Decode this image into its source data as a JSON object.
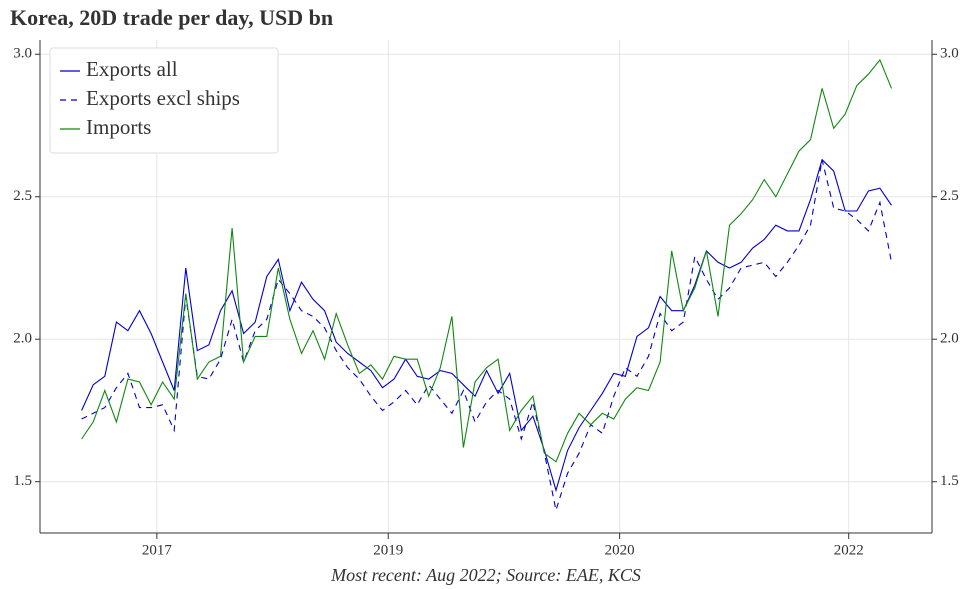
{
  "chart_data": {
    "type": "line",
    "title": "Korea, 20D trade per day, USD bn",
    "footnote": "Most recent: Aug 2022; Source: EAE, KCS",
    "x": [
      0,
      1,
      2,
      3,
      4,
      5,
      6,
      7,
      8,
      9,
      10,
      11,
      12,
      13,
      14,
      15,
      16,
      17,
      18,
      19,
      20,
      21,
      22,
      23,
      24,
      25,
      26,
      27,
      28,
      29,
      30,
      31,
      32,
      33,
      34,
      35,
      36,
      37,
      38,
      39,
      40,
      41,
      42,
      43,
      44,
      45,
      46,
      47,
      48,
      49,
      50,
      51,
      52,
      53,
      54,
      55,
      56,
      57,
      58,
      59,
      60,
      61,
      62,
      63,
      64,
      65,
      66,
      67,
      68,
      69,
      70
    ],
    "xlim": [
      -3.6,
      73.5
    ],
    "xticks": [
      {
        "value": 6.5,
        "label": "2017"
      },
      {
        "value": 26.5,
        "label": "2019"
      },
      {
        "value": 46.5,
        "label": "2020"
      },
      {
        "value": 66.3,
        "label": "2022"
      }
    ],
    "ylim": [
      1.32,
      3.05
    ],
    "yticks": [
      1.5,
      {
        "value": 2.0,
        "label": "2.0"
      },
      2.5,
      {
        "value": 3.0,
        "label": "3.0"
      }
    ],
    "grid": true,
    "legend": "upper left",
    "series": [
      {
        "name": "Exports all",
        "color": "#0000cc",
        "dash": "solid",
        "values": [
          1.75,
          1.84,
          1.87,
          2.06,
          2.03,
          2.1,
          2.02,
          1.92,
          1.82,
          2.25,
          1.96,
          1.98,
          2.1,
          2.17,
          2.02,
          2.06,
          2.22,
          2.28,
          2.1,
          2.2,
          2.14,
          2.1,
          1.99,
          1.95,
          1.92,
          1.89,
          1.83,
          1.86,
          1.93,
          1.87,
          1.86,
          1.89,
          1.88,
          1.84,
          1.8,
          1.89,
          1.81,
          1.88,
          1.68,
          1.73,
          1.61,
          1.47,
          1.61,
          1.69,
          1.75,
          1.81,
          1.88,
          1.87,
          2.01,
          2.04,
          2.15,
          2.1,
          2.1,
          2.19,
          2.31,
          2.27,
          2.25,
          2.27,
          2.32,
          2.35,
          2.4,
          2.38,
          2.38,
          2.49,
          2.63,
          2.59,
          2.45,
          2.45,
          2.52,
          2.53,
          2.47
        ]
      },
      {
        "name": "Exports excl ships",
        "color": "#0000cc",
        "dash": "dashed",
        "values": [
          1.72,
          1.74,
          1.76,
          1.83,
          1.88,
          1.76,
          1.76,
          1.77,
          1.68,
          2.15,
          1.87,
          1.86,
          1.93,
          2.07,
          1.92,
          2.03,
          2.07,
          2.21,
          2.16,
          2.1,
          2.08,
          2.04,
          1.96,
          1.9,
          1.86,
          1.8,
          1.75,
          1.78,
          1.82,
          1.77,
          1.84,
          1.79,
          1.74,
          1.82,
          1.71,
          1.78,
          1.82,
          1.79,
          1.65,
          1.78,
          1.6,
          1.4,
          1.53,
          1.6,
          1.7,
          1.67,
          1.8,
          1.9,
          1.87,
          1.94,
          2.09,
          2.03,
          2.06,
          2.29,
          2.21,
          2.14,
          2.18,
          2.25,
          2.26,
          2.27,
          2.22,
          2.27,
          2.33,
          2.4,
          2.63,
          2.46,
          2.45,
          2.42,
          2.38,
          2.48,
          2.27
        ]
      },
      {
        "name": "Imports",
        "color": "#118811",
        "dash": "solid",
        "values": [
          1.65,
          1.71,
          1.82,
          1.71,
          1.86,
          1.85,
          1.77,
          1.85,
          1.79,
          2.16,
          1.86,
          1.92,
          1.94,
          2.39,
          1.92,
          2.01,
          2.01,
          2.25,
          2.07,
          1.95,
          2.03,
          1.93,
          2.09,
          1.98,
          1.88,
          1.91,
          1.86,
          1.94,
          1.93,
          1.93,
          1.8,
          1.9,
          2.08,
          1.62,
          1.85,
          1.9,
          1.93,
          1.68,
          1.75,
          1.8,
          1.6,
          1.57,
          1.67,
          1.74,
          1.7,
          1.74,
          1.72,
          1.79,
          1.83,
          1.82,
          1.92,
          2.31,
          2.1,
          2.18,
          2.31,
          2.08,
          2.4,
          2.44,
          2.49,
          2.56,
          2.5,
          2.58,
          2.66,
          2.7,
          2.88,
          2.74,
          2.79,
          2.89,
          2.93,
          2.98,
          2.88
        ]
      }
    ]
  }
}
